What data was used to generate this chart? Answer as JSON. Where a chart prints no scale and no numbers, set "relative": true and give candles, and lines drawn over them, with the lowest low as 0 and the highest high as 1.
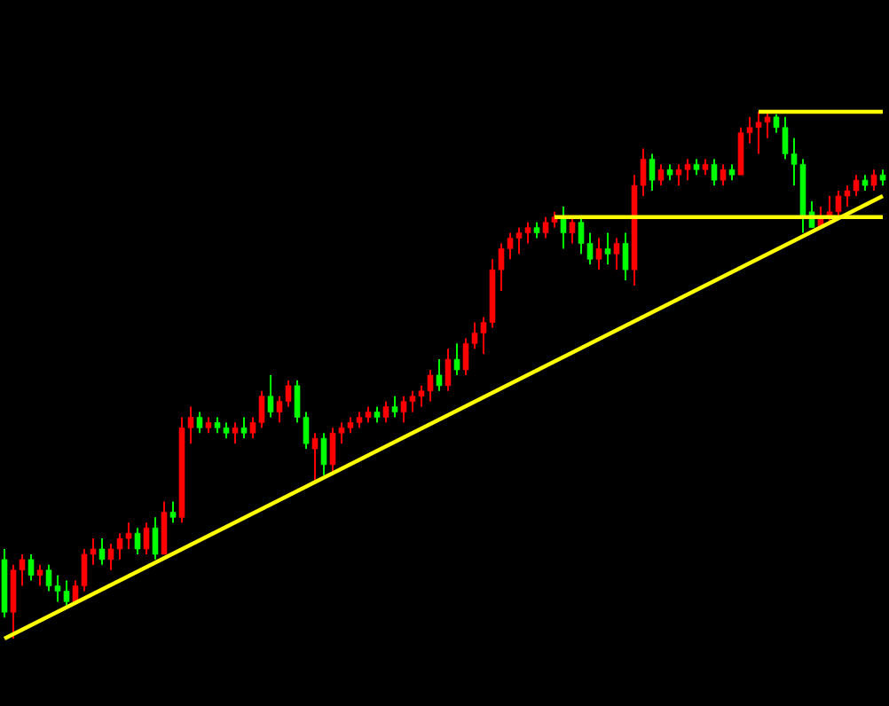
{
  "chart_data": {
    "type": "candlestick",
    "relative": true,
    "categories": [
      null,
      null,
      null,
      null,
      null,
      null,
      null,
      null,
      null,
      null,
      null,
      null,
      null,
      null,
      null,
      null,
      null,
      null,
      null,
      null,
      null,
      null,
      null,
      null,
      null,
      null,
      null,
      null,
      null,
      null,
      null,
      null,
      null,
      null,
      null,
      null,
      null,
      null,
      null,
      null,
      null,
      null,
      null,
      null,
      null,
      null,
      null,
      null,
      null,
      null,
      null,
      null,
      null,
      null,
      null,
      null,
      null,
      null,
      null,
      null,
      null,
      null,
      null,
      null,
      null,
      null,
      null,
      null,
      null,
      null,
      null,
      null,
      null,
      null,
      null,
      null,
      null,
      null,
      null,
      null,
      null,
      null,
      null,
      null,
      null,
      null,
      null,
      null,
      null,
      null,
      null,
      null,
      null,
      null,
      null,
      null,
      null,
      null,
      null,
      null
    ],
    "ohlc": [
      [
        0.15,
        0.17,
        0.04,
        0.05
      ],
      [
        0.05,
        0.14,
        0,
        0.13
      ],
      [
        0.13,
        0.16,
        0.1,
        0.15
      ],
      [
        0.15,
        0.16,
        0.11,
        0.12
      ],
      [
        0.12,
        0.14,
        0.1,
        0.13
      ],
      [
        0.13,
        0.14,
        0.09,
        0.1
      ],
      [
        0.1,
        0.12,
        0.07,
        0.09
      ],
      [
        0.09,
        0.11,
        0.06,
        0.07
      ],
      [
        0.07,
        0.11,
        0.07,
        0.1
      ],
      [
        0.1,
        0.17,
        0.09,
        0.16
      ],
      [
        0.16,
        0.19,
        0.14,
        0.17
      ],
      [
        0.17,
        0.19,
        0.14,
        0.15
      ],
      [
        0.15,
        0.18,
        0.13,
        0.17
      ],
      [
        0.17,
        0.2,
        0.15,
        0.19
      ],
      [
        0.19,
        0.22,
        0.17,
        0.2
      ],
      [
        0.2,
        0.21,
        0.16,
        0.17
      ],
      [
        0.17,
        0.22,
        0.16,
        0.21
      ],
      [
        0.21,
        0.23,
        0.15,
        0.16
      ],
      [
        0.16,
        0.26,
        0.16,
        0.24
      ],
      [
        0.24,
        0.26,
        0.22,
        0.23
      ],
      [
        0.23,
        0.42,
        0.22,
        0.4
      ],
      [
        0.4,
        0.44,
        0.37,
        0.42
      ],
      [
        0.42,
        0.43,
        0.39,
        0.4
      ],
      [
        0.4,
        0.42,
        0.39,
        0.41
      ],
      [
        0.41,
        0.42,
        0.39,
        0.4
      ],
      [
        0.4,
        0.41,
        0.38,
        0.39
      ],
      [
        0.39,
        0.41,
        0.37,
        0.4
      ],
      [
        0.4,
        0.42,
        0.38,
        0.39
      ],
      [
        0.39,
        0.42,
        0.38,
        0.41
      ],
      [
        0.41,
        0.47,
        0.4,
        0.46
      ],
      [
        0.46,
        0.5,
        0.42,
        0.43
      ],
      [
        0.43,
        0.46,
        0.41,
        0.45
      ],
      [
        0.45,
        0.49,
        0.44,
        0.48
      ],
      [
        0.48,
        0.49,
        0.41,
        0.42
      ],
      [
        0.42,
        0.43,
        0.36,
        0.37
      ],
      [
        0.36,
        0.39,
        0.3,
        0.38
      ],
      [
        0.38,
        0.39,
        0.31,
        0.33
      ],
      [
        0.33,
        0.4,
        0.31,
        0.39
      ],
      [
        0.39,
        0.41,
        0.37,
        0.4
      ],
      [
        0.4,
        0.42,
        0.39,
        0.41
      ],
      [
        0.41,
        0.43,
        0.4,
        0.42
      ],
      [
        0.42,
        0.44,
        0.41,
        0.43
      ],
      [
        0.43,
        0.44,
        0.41,
        0.42
      ],
      [
        0.42,
        0.45,
        0.41,
        0.44
      ],
      [
        0.44,
        0.46,
        0.42,
        0.43
      ],
      [
        0.43,
        0.46,
        0.41,
        0.45
      ],
      [
        0.45,
        0.47,
        0.43,
        0.46
      ],
      [
        0.46,
        0.48,
        0.44,
        0.47
      ],
      [
        0.47,
        0.51,
        0.45,
        0.5
      ],
      [
        0.5,
        0.53,
        0.47,
        0.48
      ],
      [
        0.48,
        0.55,
        0.47,
        0.53
      ],
      [
        0.53,
        0.56,
        0.5,
        0.51
      ],
      [
        0.51,
        0.57,
        0.5,
        0.56
      ],
      [
        0.56,
        0.6,
        0.55,
        0.58
      ],
      [
        0.58,
        0.61,
        0.54,
        0.6
      ],
      [
        0.6,
        0.72,
        0.59,
        0.7
      ],
      [
        0.7,
        0.75,
        0.66,
        0.74
      ],
      [
        0.74,
        0.77,
        0.72,
        0.76
      ],
      [
        0.76,
        0.78,
        0.73,
        0.77
      ],
      [
        0.77,
        0.79,
        0.75,
        0.78
      ],
      [
        0.78,
        0.79,
        0.76,
        0.77
      ],
      [
        0.77,
        0.8,
        0.76,
        0.79
      ],
      [
        0.79,
        0.81,
        0.78,
        0.8
      ],
      [
        0.8,
        0.82,
        0.74,
        0.77
      ],
      [
        0.77,
        0.8,
        0.75,
        0.79
      ],
      [
        0.79,
        0.8,
        0.73,
        0.75
      ],
      [
        0.75,
        0.77,
        0.71,
        0.72
      ],
      [
        0.72,
        0.76,
        0.7,
        0.74
      ],
      [
        0.74,
        0.77,
        0.71,
        0.73
      ],
      [
        0.73,
        0.76,
        0.7,
        0.75
      ],
      [
        0.75,
        0.77,
        0.68,
        0.7
      ],
      [
        0.7,
        0.88,
        0.67,
        0.86
      ],
      [
        0.86,
        0.93,
        0.84,
        0.91
      ],
      [
        0.91,
        0.92,
        0.85,
        0.87
      ],
      [
        0.87,
        0.9,
        0.86,
        0.89
      ],
      [
        0.89,
        0.9,
        0.87,
        0.88
      ],
      [
        0.88,
        0.9,
        0.86,
        0.89
      ],
      [
        0.89,
        0.91,
        0.87,
        0.9
      ],
      [
        0.9,
        0.91,
        0.88,
        0.89
      ],
      [
        0.89,
        0.91,
        0.88,
        0.9
      ],
      [
        0.9,
        0.91,
        0.86,
        0.87
      ],
      [
        0.87,
        0.9,
        0.86,
        0.89
      ],
      [
        0.89,
        0.9,
        0.87,
        0.88
      ],
      [
        0.88,
        0.97,
        0.88,
        0.96
      ],
      [
        0.96,
        0.99,
        0.94,
        0.97
      ],
      [
        0.97,
        1,
        0.92,
        0.98
      ],
      [
        0.98,
        1,
        0.95,
        0.99
      ],
      [
        0.99,
        0.995,
        0.96,
        0.97
      ],
      [
        0.97,
        0.99,
        0.91,
        0.92
      ],
      [
        0.92,
        0.95,
        0.86,
        0.9
      ],
      [
        0.9,
        0.91,
        0.77,
        0.8
      ],
      [
        0.81,
        0.83,
        0.78,
        0.78
      ],
      [
        0.78,
        0.82,
        0.78,
        0.8
      ],
      [
        0.8,
        0.84,
        0.79,
        0.81
      ],
      [
        0.81,
        0.85,
        0.8,
        0.84
      ],
      [
        0.84,
        0.86,
        0.82,
        0.85
      ],
      [
        0.85,
        0.88,
        0.84,
        0.87
      ],
      [
        0.87,
        0.88,
        0.85,
        0.86
      ],
      [
        0.86,
        0.89,
        0.85,
        0.88
      ],
      [
        0.88,
        0.89,
        0.86,
        0.87
      ]
    ],
    "colors": [
      "#00ff00",
      "#ff0000",
      "#ff0000",
      "#00ff00",
      "#ff0000",
      "#00ff00",
      "#00ff00",
      "#00ff00",
      "#ff0000",
      "#ff0000",
      "#ff0000",
      "#00ff00",
      "#ff0000",
      "#ff0000",
      "#ff0000",
      "#00ff00",
      "#ff0000",
      "#00ff00",
      "#ff0000",
      "#00ff00",
      "#ff0000",
      "#ff0000",
      "#00ff00",
      "#ff0000",
      "#00ff00",
      "#00ff00",
      "#ff0000",
      "#00ff00",
      "#ff0000",
      "#ff0000",
      "#00ff00",
      "#ff0000",
      "#ff0000",
      "#00ff00",
      "#00ff00",
      "#ff0000",
      "#00ff00",
      "#ff0000",
      "#ff0000",
      "#ff0000",
      "#ff0000",
      "#ff0000",
      "#00ff00",
      "#ff0000",
      "#00ff00",
      "#ff0000",
      "#ff0000",
      "#ff0000",
      "#ff0000",
      "#00ff00",
      "#ff0000",
      "#00ff00",
      "#ff0000",
      "#ff0000",
      "#ff0000",
      "#ff0000",
      "#ff0000",
      "#ff0000",
      "#ff0000",
      "#ff0000",
      "#00ff00",
      "#ff0000",
      "#ff0000",
      "#00ff00",
      "#ff0000",
      "#00ff00",
      "#00ff00",
      "#ff0000",
      "#00ff00",
      "#ff0000",
      "#00ff00",
      "#ff0000",
      "#ff0000",
      "#00ff00",
      "#ff0000",
      "#00ff00",
      "#ff0000",
      "#ff0000",
      "#00ff00",
      "#ff0000",
      "#00ff00",
      "#ff0000",
      "#00ff00",
      "#ff0000",
      "#ff0000",
      "#ff0000",
      "#ff0000",
      "#00ff00",
      "#00ff00",
      "#00ff00",
      "#00ff00",
      "#00ff00",
      "#ff0000",
      "#ff0000",
      "#ff0000",
      "#ff0000",
      "#ff0000",
      "#00ff00",
      "#ff0000",
      "#00ff00"
    ],
    "series": [
      {
        "type": "line",
        "color": "#ffff00",
        "values": [
          0,
          null,
          null,
          null,
          null,
          null,
          null,
          null,
          null,
          null,
          null,
          null,
          null,
          null,
          null,
          null,
          null,
          null,
          null,
          null,
          null,
          null,
          null,
          null,
          null,
          null,
          null,
          null,
          null,
          null,
          null,
          null,
          null,
          null,
          null,
          null,
          null,
          null,
          null,
          null,
          null,
          null,
          null,
          null,
          null,
          null,
          null,
          null,
          null,
          null,
          null,
          null,
          null,
          null,
          null,
          null,
          null,
          null,
          null,
          null,
          null,
          null,
          null,
          null,
          null,
          null,
          null,
          null,
          null,
          null,
          null,
          null,
          null,
          null,
          null,
          null,
          null,
          null,
          null,
          null,
          null,
          null,
          null,
          null,
          null,
          null,
          null,
          null,
          null,
          null,
          null,
          null,
          null,
          null,
          null,
          null,
          null,
          null,
          null,
          0.84
        ]
      },
      {
        "type": "line",
        "color": "#ffff00",
        "values": [
          null,
          null,
          null,
          null,
          null,
          null,
          null,
          null,
          null,
          null,
          null,
          null,
          null,
          null,
          null,
          null,
          null,
          null,
          null,
          null,
          null,
          null,
          null,
          null,
          null,
          null,
          null,
          null,
          null,
          null,
          null,
          null,
          null,
          null,
          null,
          null,
          null,
          null,
          null,
          null,
          null,
          null,
          null,
          null,
          null,
          null,
          null,
          null,
          null,
          null,
          null,
          null,
          null,
          null,
          null,
          null,
          null,
          null,
          null,
          null,
          null,
          null,
          0.8,
          null,
          null,
          null,
          null,
          null,
          null,
          null,
          null,
          null,
          null,
          null,
          null,
          null,
          null,
          null,
          null,
          null,
          null,
          null,
          null,
          null,
          null,
          null,
          null,
          null,
          null,
          null,
          null,
          null,
          null,
          null,
          null,
          null,
          null,
          null,
          null,
          0.8
        ]
      },
      {
        "type": "line",
        "color": "#ffff00",
        "values": [
          null,
          null,
          null,
          null,
          null,
          null,
          null,
          null,
          null,
          null,
          null,
          null,
          null,
          null,
          null,
          null,
          null,
          null,
          null,
          null,
          null,
          null,
          null,
          null,
          null,
          null,
          null,
          null,
          null,
          null,
          null,
          null,
          null,
          null,
          null,
          null,
          null,
          null,
          null,
          null,
          null,
          null,
          null,
          null,
          null,
          null,
          null,
          null,
          null,
          null,
          null,
          null,
          null,
          null,
          null,
          null,
          null,
          null,
          null,
          null,
          null,
          null,
          null,
          null,
          null,
          null,
          null,
          null,
          null,
          null,
          null,
          null,
          null,
          null,
          null,
          null,
          null,
          null,
          null,
          null,
          null,
          null,
          null,
          null,
          null,
          1,
          null,
          null,
          null,
          null,
          null,
          null,
          null,
          null,
          null,
          null,
          null,
          null,
          null,
          1
        ]
      }
    ]
  }
}
